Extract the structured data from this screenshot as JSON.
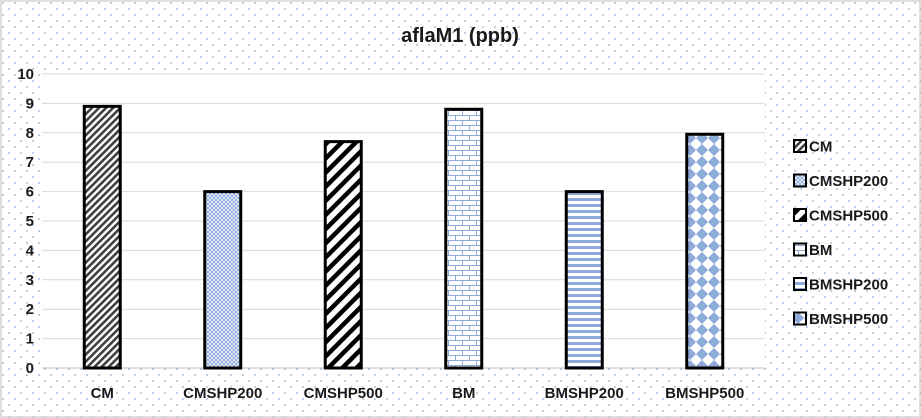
{
  "chart_data": {
    "type": "bar",
    "title": "aflaM1 (ppb)",
    "categories": [
      "CM",
      "CMSHP200",
      "CMSHP500",
      "BM",
      "BMSHP200",
      "BMSHP500"
    ],
    "values": [
      8.9,
      6.0,
      7.7,
      8.8,
      6.0,
      7.95
    ],
    "ylim": [
      0,
      10
    ],
    "yticks": [
      0,
      1,
      2,
      3,
      4,
      5,
      6,
      7,
      8,
      9,
      10
    ],
    "xlabel": "",
    "ylabel": "",
    "grid": true,
    "legend": {
      "placement": "right",
      "entries": [
        "CM",
        "CMSHP200",
        "CMSHP500",
        "BM",
        "BMSHP200",
        "BMSHP500"
      ]
    },
    "patterns": [
      "dense-diagonal-dark",
      "blue-crosshatch",
      "bold-diagonal-black",
      "blue-brick",
      "blue-horizontal-lines",
      "blue-diamonds"
    ],
    "colors": {
      "accent_blue": "#8eaadb",
      "bar_outline": "#000000",
      "grid": "#d9d9d9",
      "background_dot": "#8faadc"
    }
  }
}
